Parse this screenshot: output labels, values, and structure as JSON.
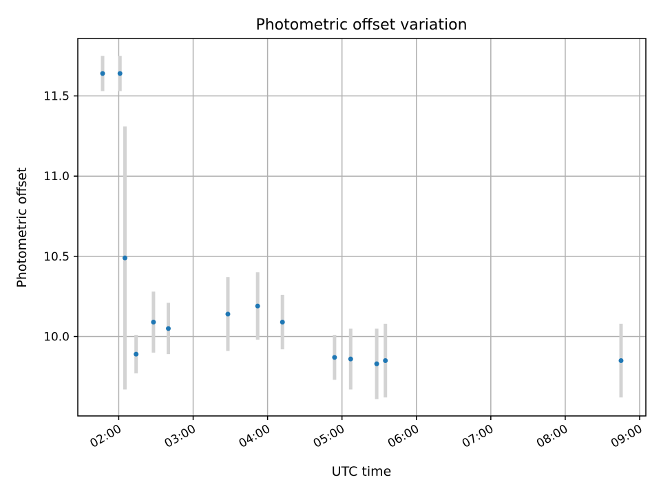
{
  "chart_data": {
    "type": "scatter",
    "title": "Photometric offset variation",
    "xlabel": "UTC time",
    "ylabel": "Photometric offset",
    "xlim": [
      "01:27",
      "09:05"
    ],
    "ylim": [
      9.505,
      11.858
    ],
    "grid": true,
    "x_ticks": [
      "02:00",
      "03:00",
      "04:00",
      "05:00",
      "06:00",
      "07:00",
      "08:00",
      "09:00"
    ],
    "y_ticks": [
      10.0,
      10.5,
      11.0,
      11.5
    ],
    "y_tick_labels": [
      "10.0",
      "10.5",
      "11.0",
      "11.5"
    ],
    "colors": {
      "marker": "#1f77b4",
      "errorbar": "#d3d3d3",
      "grid": "#b0b0b0"
    },
    "points": [
      {
        "x": "01:47",
        "y": 11.64,
        "err": 0.11
      },
      {
        "x": "02:01",
        "y": 11.64,
        "err": 0.11
      },
      {
        "x": "02:05",
        "y": 10.49,
        "err": 0.82
      },
      {
        "x": "02:14",
        "y": 9.89,
        "err": 0.12
      },
      {
        "x": "02:28",
        "y": 10.09,
        "err": 0.19
      },
      {
        "x": "02:40",
        "y": 10.05,
        "err": 0.16
      },
      {
        "x": "03:28",
        "y": 10.14,
        "err": 0.23
      },
      {
        "x": "03:52",
        "y": 10.19,
        "err": 0.21
      },
      {
        "x": "04:12",
        "y": 10.09,
        "err": 0.17
      },
      {
        "x": "04:54",
        "y": 9.87,
        "err": 0.14
      },
      {
        "x": "05:07",
        "y": 9.86,
        "err": 0.19
      },
      {
        "x": "05:28",
        "y": 9.83,
        "err": 0.22
      },
      {
        "x": "05:35",
        "y": 9.85,
        "err": 0.23
      },
      {
        "x": "08:45",
        "y": 9.85,
        "err": 0.23
      }
    ]
  }
}
